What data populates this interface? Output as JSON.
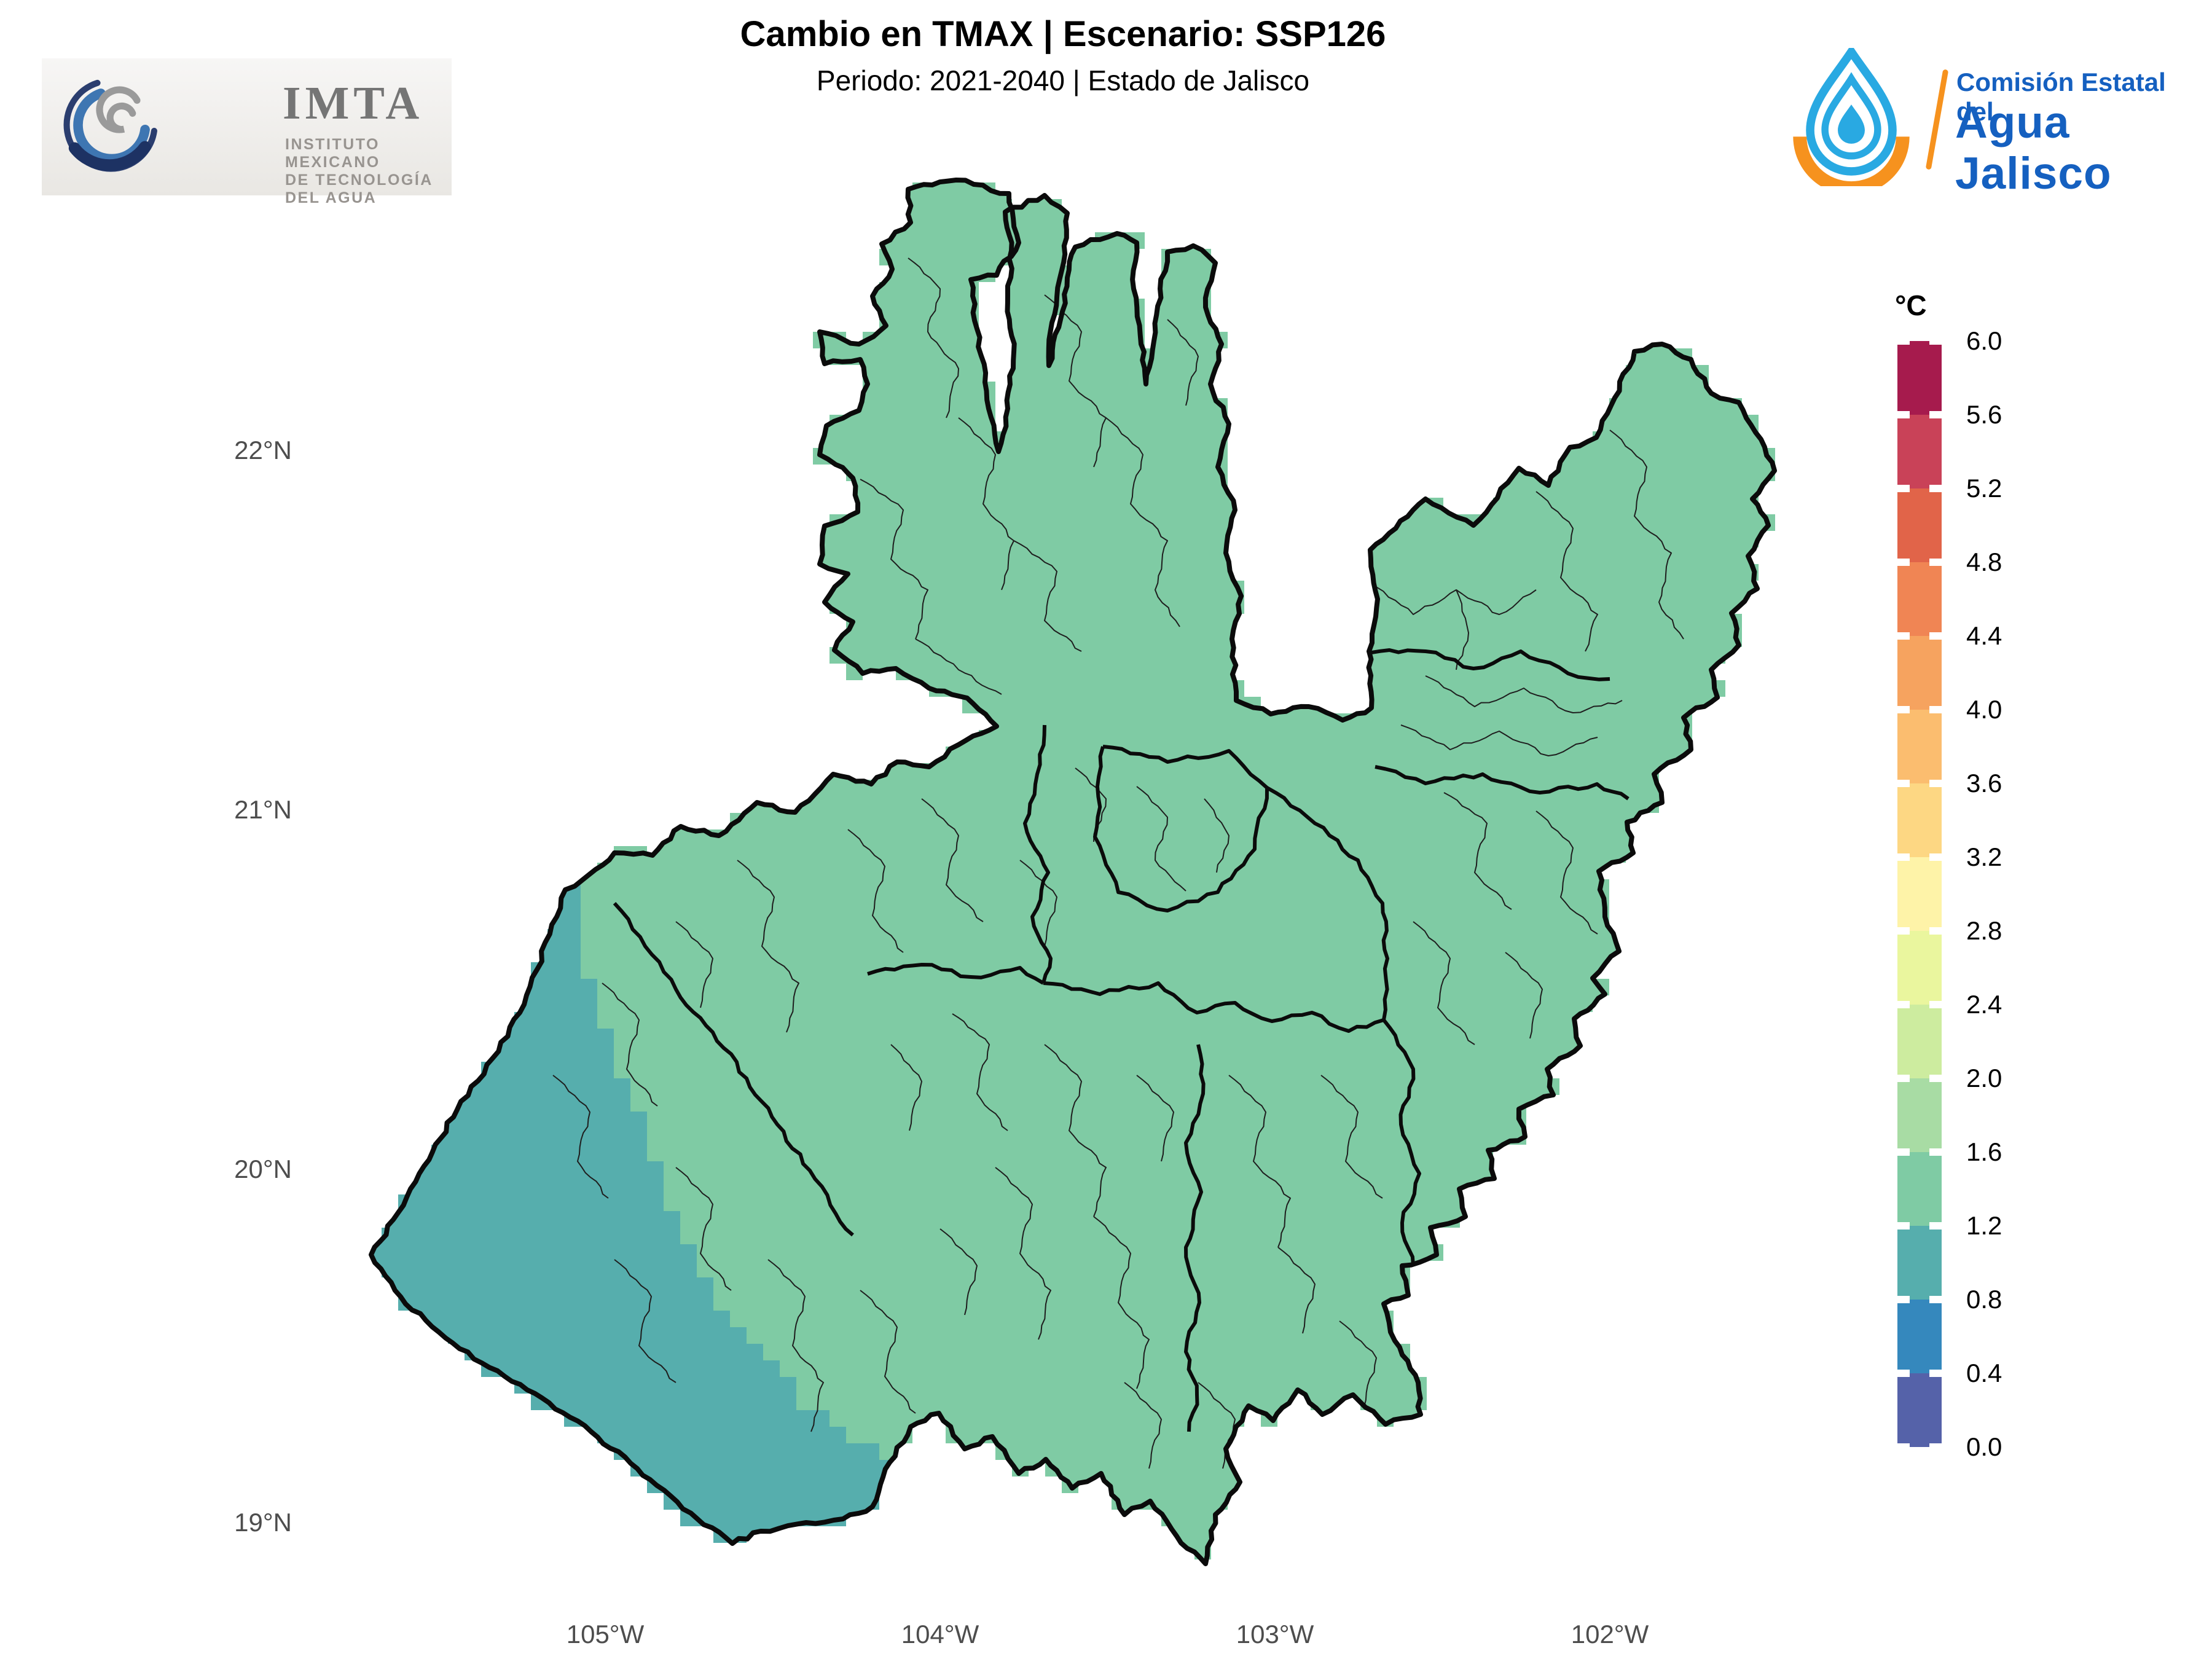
{
  "header": {
    "title": "Cambio en TMAX | Escenario: SSP126",
    "subtitle": "Periodo: 2021-2040 | Estado de Jalisco"
  },
  "logos": {
    "imta": {
      "acronym": "IMTA",
      "name_lines": [
        "INSTITUTO MEXICANO",
        "DE TECNOLOGÍA",
        "DEL AGUA"
      ]
    },
    "cea": {
      "line1": "Comisión Estatal del",
      "line2": "Agua Jalisco",
      "drop_color": "#29A9E2",
      "arc_color": "#F6921E",
      "text_color": "#1560C0"
    }
  },
  "map": {
    "x_axis_labels": [
      "105°W",
      "104°W",
      "103°W",
      "102°W"
    ],
    "y_axis_labels": [
      "22°N",
      "21°N",
      "20°N",
      "19°N"
    ],
    "fill_color_main": "#7FCBA4",
    "fill_color_southwest": "#56AEAD",
    "boundary_color": "#0B0B0B"
  },
  "legend": {
    "title": "°C",
    "tick_labels": [
      "6.0",
      "5.6",
      "5.2",
      "4.8",
      "4.4",
      "4.0",
      "3.6",
      "3.2",
      "2.8",
      "2.4",
      "2.0",
      "1.6",
      "1.2",
      "0.8",
      "0.4",
      "0.0"
    ],
    "colors": [
      "#A61B4D",
      "#C94258",
      "#E16449",
      "#F08554",
      "#F6A35F",
      "#FBBD6F",
      "#FDD783",
      "#FEF3A8",
      "#EAF69E",
      "#CDEC9F",
      "#A8DCA4",
      "#7FCBA4",
      "#56AEAD",
      "#3588BD",
      "#5562A9"
    ]
  }
}
